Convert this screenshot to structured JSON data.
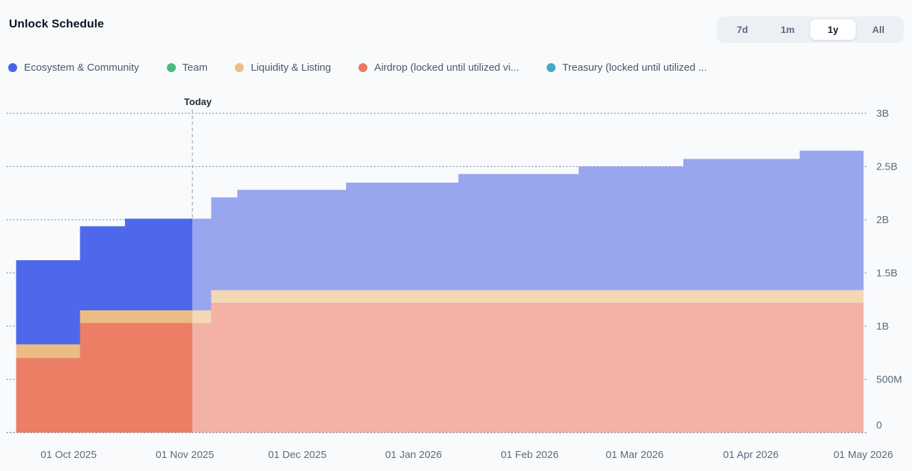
{
  "header": {
    "title": "Unlock Schedule"
  },
  "range_selector": {
    "active": "1y",
    "options": [
      {
        "label": "7d"
      },
      {
        "label": "1m"
      },
      {
        "label": "1y"
      },
      {
        "label": "All"
      }
    ]
  },
  "legend": {
    "items": [
      {
        "label": "Ecosystem & Community",
        "color": "#4a63e7"
      },
      {
        "label": "Team",
        "color": "#4eba7d"
      },
      {
        "label": "Liquidity & Listing",
        "color": "#eebd85"
      },
      {
        "label": "Airdrop (locked until utilized vi...",
        "color": "#ea7a5f"
      },
      {
        "label": "Treasury (locked until utilized ...",
        "color": "#46a8c8"
      }
    ]
  },
  "chart_data": {
    "type": "area",
    "stacked": true,
    "step": true,
    "title": "Unlock Schedule",
    "unit": "tokens",
    "value_scale": "billions",
    "legend_position": "top",
    "grid": "dotted",
    "today": {
      "date": "2025-11-03",
      "label": "Today"
    },
    "y_axis": {
      "side": "right",
      "range": [
        0,
        3
      ],
      "ticks": [
        {
          "label": "0",
          "value": 0
        },
        {
          "label": "500M",
          "value": 0.5
        },
        {
          "label": "1B",
          "value": 1
        },
        {
          "label": "1.5B",
          "value": 1.5
        },
        {
          "label": "2B",
          "value": 2
        },
        {
          "label": "2.5B",
          "value": 2.5
        },
        {
          "label": "3B",
          "value": 3
        }
      ]
    },
    "x_axis": {
      "ticks": [
        {
          "label": "01 Oct 2025",
          "date": "2025-10-01"
        },
        {
          "label": "01 Nov 2025",
          "date": "2025-11-01"
        },
        {
          "label": "01 Dec 2025",
          "date": "2025-12-01"
        },
        {
          "label": "01 Jan 2026",
          "date": "2026-01-01"
        },
        {
          "label": "01 Feb 2026",
          "date": "2026-02-01"
        },
        {
          "label": "01 Mar 2026",
          "date": "2026-03-01"
        },
        {
          "label": "01 Apr 2026",
          "date": "2026-04-01"
        },
        {
          "label": "01 May 2026",
          "date": "2026-05-01"
        }
      ]
    },
    "segment_boundaries": [
      "2025-09-17",
      "2025-10-04",
      "2025-10-16",
      "2025-11-03",
      "2025-11-08",
      "2025-11-15",
      "2025-12-14",
      "2026-01-13",
      "2026-02-14",
      "2026-03-14",
      "2026-04-14",
      "2026-05-01"
    ],
    "series": [
      {
        "id": "airdrop",
        "name": "Airdrop (locked until utilized vi...",
        "color": "#eb7e65",
        "color_future": "#f4b1a6",
        "values": [
          0.7,
          1.03,
          1.03,
          1.03,
          1.22,
          1.22,
          1.22,
          1.22,
          1.22,
          1.22,
          1.22
        ]
      },
      {
        "id": "liquidity",
        "name": "Liquidity & Listing",
        "color": "#ecbc85",
        "color_future": "#f3d8b5",
        "values": [
          0.13,
          0.12,
          0.12,
          0.12,
          0.12,
          0.12,
          0.12,
          0.12,
          0.12,
          0.12,
          0.12
        ]
      },
      {
        "id": "ecosystem",
        "name": "Ecosystem & Community",
        "color": "#4d68ea",
        "color_future": "#98a6f0",
        "values": [
          0.79,
          0.79,
          0.86,
          0.86,
          0.87,
          0.94,
          1.01,
          1.09,
          1.16,
          1.23,
          1.31
        ]
      },
      {
        "id": "team",
        "name": "Team",
        "color": "#4eba7d",
        "values": [
          0,
          0,
          0,
          0,
          0,
          0,
          0,
          0,
          0,
          0,
          0
        ]
      },
      {
        "id": "treasury",
        "name": "Treasury (locked until utilized ...",
        "color": "#46a8c8",
        "values": [
          0,
          0,
          0,
          0,
          0,
          0,
          0,
          0,
          0,
          0,
          0
        ]
      }
    ]
  }
}
